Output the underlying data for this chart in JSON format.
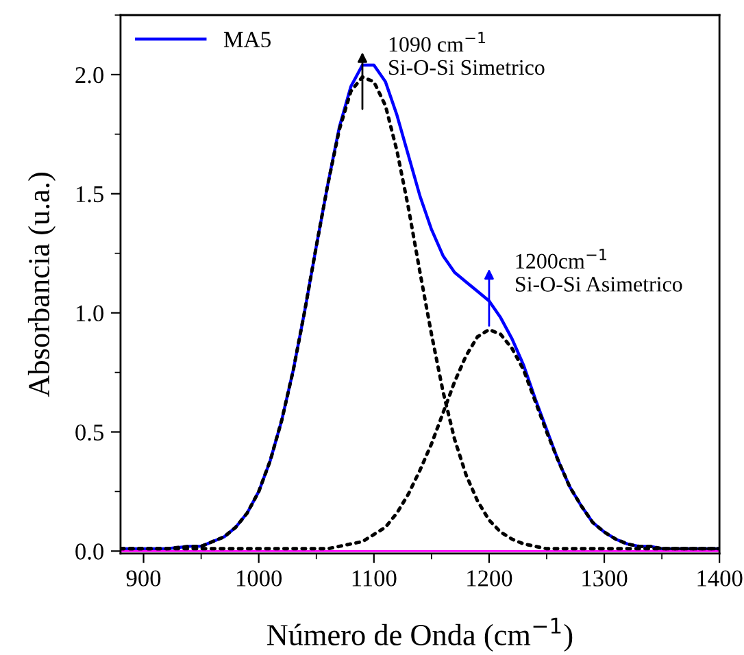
{
  "chart_data": {
    "type": "line",
    "xlabel": "Número de Onda (cm$^{−1}$)",
    "ylabel": "Absorbancia (u.a.)",
    "x": [
      880,
      900,
      920,
      940,
      950,
      960,
      970,
      980,
      990,
      1000,
      1010,
      1020,
      1030,
      1040,
      1050,
      1060,
      1070,
      1080,
      1090,
      1100,
      1110,
      1120,
      1130,
      1140,
      1150,
      1160,
      1170,
      1180,
      1190,
      1200,
      1210,
      1220,
      1230,
      1240,
      1250,
      1260,
      1270,
      1280,
      1290,
      1300,
      1310,
      1320,
      1330,
      1340,
      1350,
      1370,
      1400
    ],
    "series": [
      {
        "name": "MA5",
        "color": "#0000ff",
        "line_style": "solid",
        "values": [
          0.01,
          0.01,
          0.01,
          0.02,
          0.02,
          0.04,
          0.06,
          0.1,
          0.16,
          0.25,
          0.38,
          0.55,
          0.76,
          1.01,
          1.28,
          1.54,
          1.78,
          1.95,
          2.04,
          2.04,
          1.97,
          1.83,
          1.66,
          1.49,
          1.35,
          1.24,
          1.17,
          1.13,
          1.09,
          1.05,
          0.98,
          0.89,
          0.78,
          0.64,
          0.51,
          0.38,
          0.27,
          0.19,
          0.12,
          0.08,
          0.05,
          0.03,
          0.02,
          0.02,
          0.01,
          0.01,
          0.01
        ]
      },
      {
        "color": "#000000",
        "line_style": "dotted",
        "values": [
          0.01,
          0.01,
          0.01,
          0.02,
          0.02,
          0.04,
          0.06,
          0.1,
          0.16,
          0.25,
          0.38,
          0.55,
          0.76,
          1.01,
          1.28,
          1.54,
          1.77,
          1.93,
          1.99,
          1.97,
          1.87,
          1.68,
          1.44,
          1.17,
          0.91,
          0.67,
          0.47,
          0.32,
          0.21,
          0.13,
          0.08,
          0.05,
          0.03,
          0.02,
          0.01,
          0.01,
          0.01,
          0.01,
          0.01,
          0.01,
          0.01,
          0.01,
          0.01,
          0.01,
          0.01,
          0.01,
          0.01
        ]
      },
      {
        "color": "#000000",
        "line_style": "dotted",
        "values": [
          0.01,
          0.01,
          0.01,
          0.01,
          0.01,
          0.01,
          0.01,
          0.01,
          0.01,
          0.01,
          0.01,
          0.01,
          0.01,
          0.01,
          0.01,
          0.01,
          0.02,
          0.03,
          0.04,
          0.07,
          0.1,
          0.16,
          0.24,
          0.34,
          0.45,
          0.58,
          0.71,
          0.82,
          0.9,
          0.93,
          0.91,
          0.85,
          0.76,
          0.63,
          0.5,
          0.38,
          0.27,
          0.19,
          0.12,
          0.08,
          0.05,
          0.03,
          0.02,
          0.02,
          0.01,
          0.01,
          0.01
        ]
      }
    ],
    "annotations": [
      "1090 cm$^{−1}$\nSi-O-Si Simetrico",
      "1200cm$^{−1}$\nSi-O-Si Asimetrico"
    ],
    "ref_lines": [
      {
        "axis": "y",
        "value": 0,
        "color": "#ff00ff"
      }
    ],
    "xlim": [
      880,
      1400
    ],
    "ylim": [
      -0.01,
      2.25
    ],
    "xticks": [
      900,
      1000,
      1100,
      1200,
      1300,
      1400
    ],
    "yticks": [
      {
        "value": 0,
        "label": "0.0"
      },
      {
        "value": 0.5,
        "label": "0.5"
      },
      {
        "value": 1,
        "label": "1.0"
      },
      {
        "value": 1.5,
        "label": "1.5"
      },
      {
        "value": 2,
        "label": "2.0"
      }
    ],
    "grid": false,
    "legend": "top left",
    "marker": "none"
  }
}
